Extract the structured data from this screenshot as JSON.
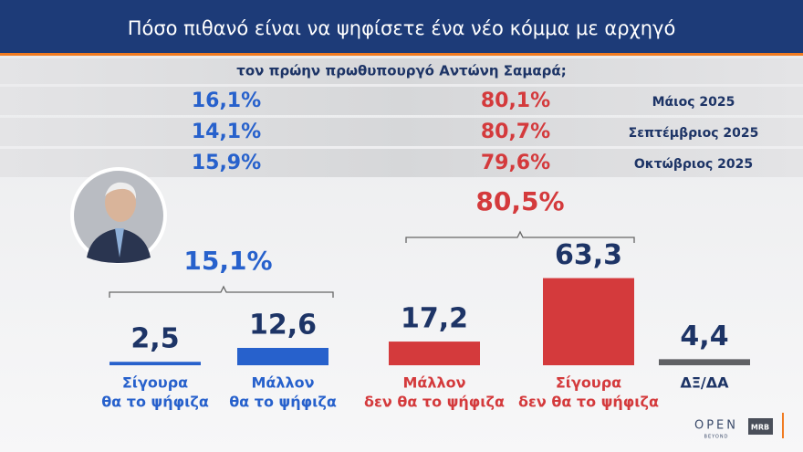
{
  "header": {
    "title": "Πόσο πιθανό είναι να ψηφίσετε ένα νέο κόμμα με αρχηγό",
    "subtitle": "τον πρώην πρωθυπουργό Αντώνη Σαμαρά;"
  },
  "history": {
    "rows": [
      [
        "16,1%",
        "80,1%",
        "Μάιος 2025"
      ],
      [
        "14,1%",
        "80,7%",
        "Σεπτέμβριος 2025"
      ],
      [
        "15,9%",
        "79,6%",
        "Οκτώβριος 2025"
      ]
    ]
  },
  "brackets": [
    "15,1%",
    "80,5%"
  ],
  "chart_data": {
    "type": "bar",
    "categories": [
      [
        "Σίγουρα",
        "θα το ψήφιζα"
      ],
      [
        "Μάλλον",
        "θα το ψήφιζα"
      ],
      [
        "Μάλλον",
        "δεν θα το ψήφιζα"
      ],
      [
        "Σίγουρα",
        "δεν θα το ψήφιζα"
      ],
      [
        "ΔΞ/ΔΑ"
      ]
    ],
    "values": [
      2.5,
      12.6,
      17.2,
      63.3,
      4.4
    ],
    "value_labels": [
      "2,5",
      "12,6",
      "17,2",
      "63,3",
      "4,4"
    ],
    "colors": [
      "#2761cc",
      "#2761cc",
      "#d43a3c",
      "#d43a3c",
      "#606165"
    ],
    "ylim": [
      0,
      65
    ]
  },
  "footer": {
    "brand": "OPEN",
    "brand_sub": "BEYOND",
    "pollster": "MRB"
  }
}
